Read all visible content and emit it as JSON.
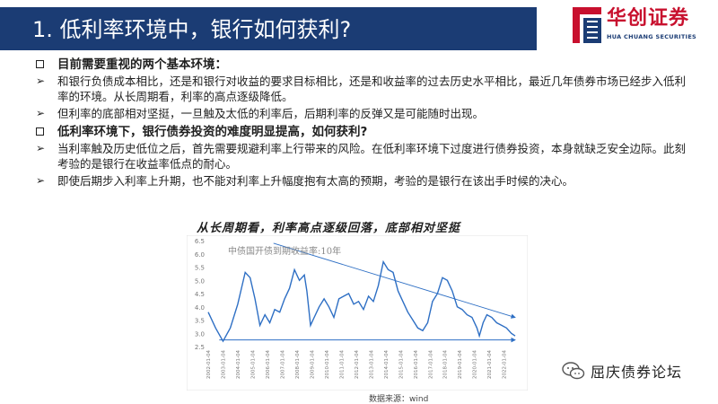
{
  "header": {
    "title": "1. 低利率环境中，银行如何获利?",
    "logo_cn": "华创证券",
    "logo_en": "HUA CHUANG SECURITIES",
    "bar_color": "#1b3c74",
    "logo_red": "#c8102e"
  },
  "content": {
    "section1_heading": "目前需要重视的两个基本环境：",
    "section1_points": [
      "和银行负债成本相比，还是和银行对收益的要求目标相比，还是和收益率的过去历史水平相比，最近几年债券市场已经步入低利率的环境。从长周期看，利率的高点逐级降低。",
      "但利率的底部相对坚挺，一旦触及太低的利率后，后期利率的反弹又是可能随时出现。"
    ],
    "section2_heading": "低利率环境下，银行债券投资的难度明显提高，如何获利?",
    "section2_points": [
      "当利率触及历史低位之后，首先需要规避利率上行带来的风险。在低利率环境下过度进行债券投资，本身就缺乏安全边际。此刻考验的是银行在收益率低点的耐心。",
      "即使后期步入利率上升期，也不能对利率上升幅度抱有太高的预期，考验的是银行在该出手时候的决心。"
    ]
  },
  "chart_caption": "从长周期看，利率高点逐级回落，底部相对坚挺",
  "chart_data": {
    "type": "line",
    "series": [
      {
        "name": "中债国开债到期收益率:10年",
        "x": [
          "2002-01-04",
          "2002-07-04",
          "2003-01-04",
          "2003-07-04",
          "2004-01-04",
          "2004-07-04",
          "2004-11-04",
          "2005-03-04",
          "2005-07-04",
          "2005-11-04",
          "2006-03-04",
          "2006-07-04",
          "2006-11-04",
          "2007-03-04",
          "2007-07-04",
          "2007-11-04",
          "2008-03-04",
          "2008-07-04",
          "2008-09-04",
          "2008-12-04",
          "2009-03-04",
          "2009-07-04",
          "2009-11-04",
          "2010-03-04",
          "2010-07-04",
          "2010-11-04",
          "2011-03-04",
          "2011-07-04",
          "2011-11-04",
          "2012-03-04",
          "2012-07-04",
          "2012-11-04",
          "2013-03-04",
          "2013-07-04",
          "2013-11-04",
          "2014-03-04",
          "2014-07-04",
          "2014-11-04",
          "2015-03-04",
          "2015-07-04",
          "2015-11-04",
          "2016-03-04",
          "2016-07-04",
          "2016-11-04",
          "2017-03-04",
          "2017-07-04",
          "2017-11-04",
          "2018-03-04",
          "2018-07-04",
          "2018-11-04",
          "2019-03-04",
          "2019-07-04",
          "2019-11-04",
          "2020-03-04",
          "2020-05-04",
          "2020-08-04",
          "2020-11-04",
          "2021-03-04",
          "2021-07-04",
          "2021-11-04",
          "2022-03-04",
          "2022-07-04",
          "2022-10-04"
        ],
        "values": [
          3.8,
          3.2,
          2.7,
          3.2,
          4.1,
          5.3,
          5.1,
          4.3,
          3.3,
          3.7,
          3.4,
          3.9,
          3.8,
          4.3,
          4.7,
          5.4,
          5.0,
          5.2,
          4.6,
          3.3,
          3.6,
          4.0,
          4.3,
          4.0,
          3.6,
          4.3,
          4.4,
          4.5,
          4.1,
          4.2,
          3.9,
          4.4,
          4.2,
          4.8,
          5.7,
          5.4,
          5.3,
          4.6,
          4.2,
          3.8,
          3.5,
          3.2,
          3.1,
          3.4,
          4.2,
          4.5,
          5.1,
          5.0,
          4.6,
          4.0,
          3.9,
          3.7,
          3.6,
          3.2,
          2.9,
          3.4,
          3.7,
          3.6,
          3.4,
          3.3,
          3.2,
          3.0,
          2.9
        ]
      }
    ],
    "ylim": [
      2.5,
      6.5
    ],
    "yticks": [
      "6.5",
      "6.0",
      "5.5",
      "5.0",
      "4.5",
      "4.0",
      "3.5",
      "3.0",
      "2.5"
    ],
    "xticks": [
      "2002-01-04",
      "2003-01-04",
      "2004-01-04",
      "2005-01-04",
      "2006-01-04",
      "2007-01-04",
      "2008-01-04",
      "2009-01-04",
      "2010-01-04",
      "2011-01-04",
      "2012-01-04",
      "2013-01-04",
      "2014-01-04",
      "2015-01-04",
      "2016-01-04",
      "2017-01-04",
      "2018-01-04",
      "2019-01-04",
      "2020-01-04",
      "2021-01-04",
      "2022-01-04"
    ],
    "line_color": "#2e6fc4",
    "trend_color": "#2e6fc4"
  },
  "source": "数据来源：wind",
  "watermark": "屈庆债券论坛"
}
